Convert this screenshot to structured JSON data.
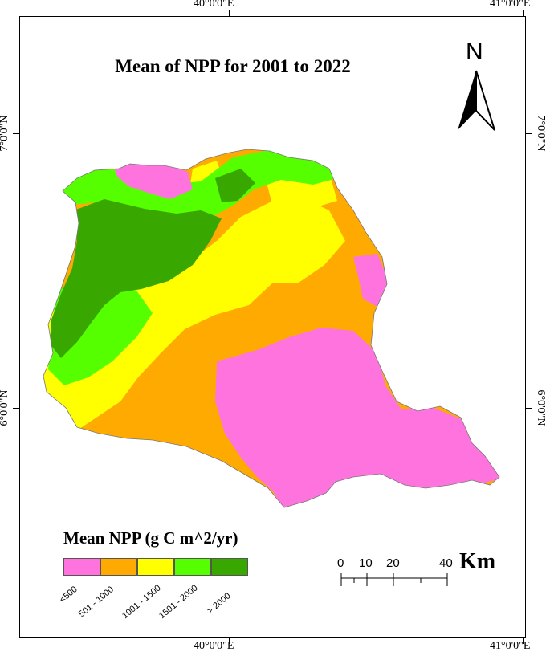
{
  "title": "Mean of NPP for 2001 to 2022",
  "north_label": "N",
  "coordinates": {
    "top_lon_1": "40°0'0\"E",
    "top_lon_2": "41°0'0\"E",
    "bottom_lon_1": "40°0'0\"E",
    "bottom_lon_2": "41°0'0\"E",
    "left_lat_1": "7°0'0\"N",
    "left_lat_2": "6°0'0\"N",
    "right_lat_1": "7°0'0\"N",
    "right_lat_2": "6°0'0\"N"
  },
  "legend": {
    "title": "Mean NPP (g C m^2/yr)",
    "classes": [
      {
        "label": "<500",
        "color": "#ff73df"
      },
      {
        "label": "501 - 1000",
        "color": "#ffaa00"
      },
      {
        "label": "1001 - 1500",
        "color": "#ffff00"
      },
      {
        "label": "1501 - 2000",
        "color": "#55ff00"
      },
      {
        "label": "> 2000",
        "color": "#38a800"
      }
    ]
  },
  "scale": {
    "labels": [
      "0",
      "10",
      "20",
      "40"
    ],
    "unit": "Km"
  }
}
